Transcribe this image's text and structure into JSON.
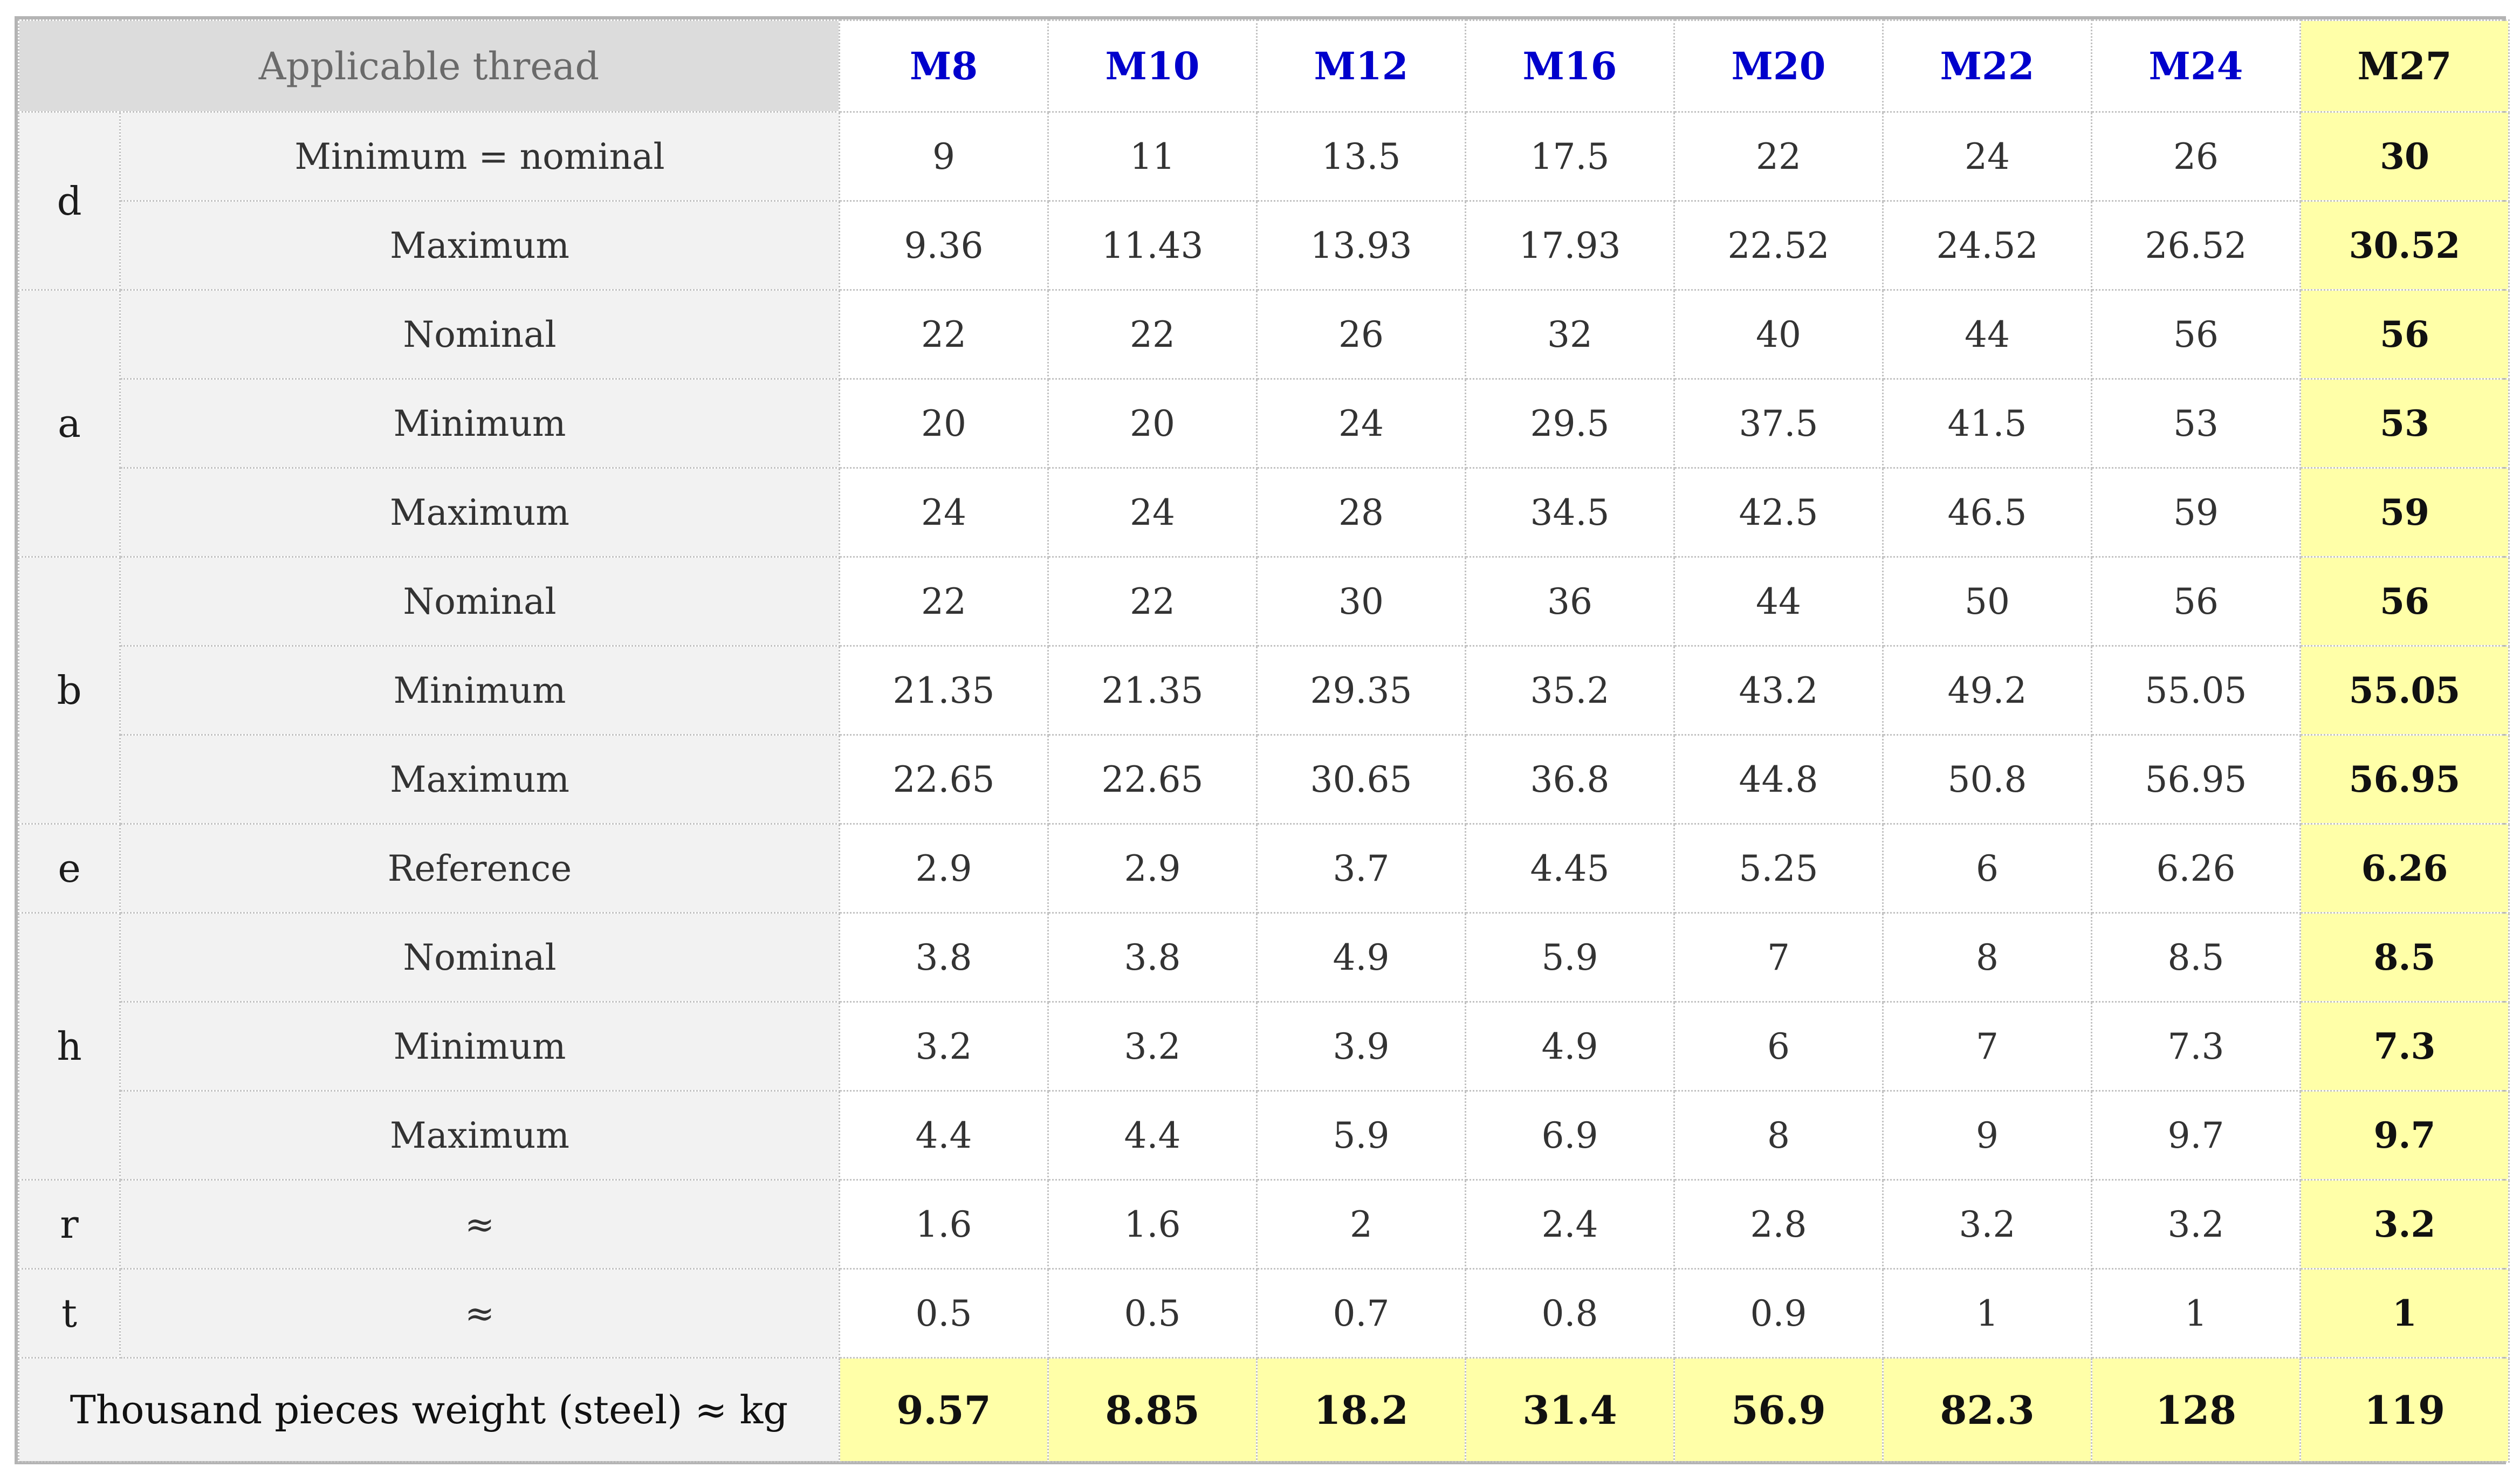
{
  "header": {
    "label": "Applicable thread",
    "threads": [
      "M8",
      "M10",
      "M12",
      "M16",
      "M20",
      "M22",
      "M24",
      "M27"
    ]
  },
  "groups": [
    {
      "symbol": "d",
      "rows": [
        {
          "label": "Minimum  = nominal",
          "values": [
            "9",
            "11",
            "13.5",
            "17.5",
            "22",
            "24",
            "26",
            "30"
          ]
        },
        {
          "label": "Maximum",
          "values": [
            "9.36",
            "11.43",
            "13.93",
            "17.93",
            "22.52",
            "24.52",
            "26.52",
            "30.52"
          ]
        }
      ]
    },
    {
      "symbol": "a",
      "rows": [
        {
          "label": "Nominal",
          "values": [
            "22",
            "22",
            "26",
            "32",
            "40",
            "44",
            "56",
            "56"
          ]
        },
        {
          "label": "Minimum",
          "values": [
            "20",
            "20",
            "24",
            "29.5",
            "37.5",
            "41.5",
            "53",
            "53"
          ]
        },
        {
          "label": "Maximum",
          "values": [
            "24",
            "24",
            "28",
            "34.5",
            "42.5",
            "46.5",
            "59",
            "59"
          ]
        }
      ]
    },
    {
      "symbol": "b",
      "rows": [
        {
          "label": "Nominal",
          "values": [
            "22",
            "22",
            "30",
            "36",
            "44",
            "50",
            "56",
            "56"
          ]
        },
        {
          "label": "Minimum",
          "values": [
            "21.35",
            "21.35",
            "29.35",
            "35.2",
            "43.2",
            "49.2",
            "55.05",
            "55.05"
          ]
        },
        {
          "label": "Maximum",
          "values": [
            "22.65",
            "22.65",
            "30.65",
            "36.8",
            "44.8",
            "50.8",
            "56.95",
            "56.95"
          ]
        }
      ]
    },
    {
      "symbol": "e",
      "rows": [
        {
          "label": "Reference",
          "values": [
            "2.9",
            "2.9",
            "3.7",
            "4.45",
            "5.25",
            "6",
            "6.26",
            "6.26"
          ]
        }
      ]
    },
    {
      "symbol": "h",
      "rows": [
        {
          "label": "Nominal",
          "values": [
            "3.8",
            "3.8",
            "4.9",
            "5.9",
            "7",
            "8",
            "8.5",
            "8.5"
          ]
        },
        {
          "label": "Minimum",
          "values": [
            "3.2",
            "3.2",
            "3.9",
            "4.9",
            "6",
            "7",
            "7.3",
            "7.3"
          ]
        },
        {
          "label": "Maximum",
          "values": [
            "4.4",
            "4.4",
            "5.9",
            "6.9",
            "8",
            "9",
            "9.7",
            "9.7"
          ]
        }
      ]
    },
    {
      "symbol": "r",
      "rows": [
        {
          "label": "≈",
          "values": [
            "1.6",
            "1.6",
            "2",
            "2.4",
            "2.8",
            "3.2",
            "3.2",
            "3.2"
          ]
        }
      ]
    },
    {
      "symbol": "t",
      "rows": [
        {
          "label": "≈",
          "values": [
            "0.5",
            "0.5",
            "0.7",
            "0.8",
            "0.9",
            "1",
            "1",
            "1"
          ]
        }
      ]
    }
  ],
  "weight": {
    "label": "Thousand pieces weight (steel) ≈ kg",
    "values": [
      "9.57",
      "8.85",
      "18.2",
      "31.4",
      "56.9",
      "82.3",
      "128",
      "119"
    ]
  },
  "colors": {
    "highlight": "#ffffa8",
    "thread_text": "#0000cc",
    "label_background": "#f2f2f2",
    "header_background": "#dcdcdc"
  }
}
